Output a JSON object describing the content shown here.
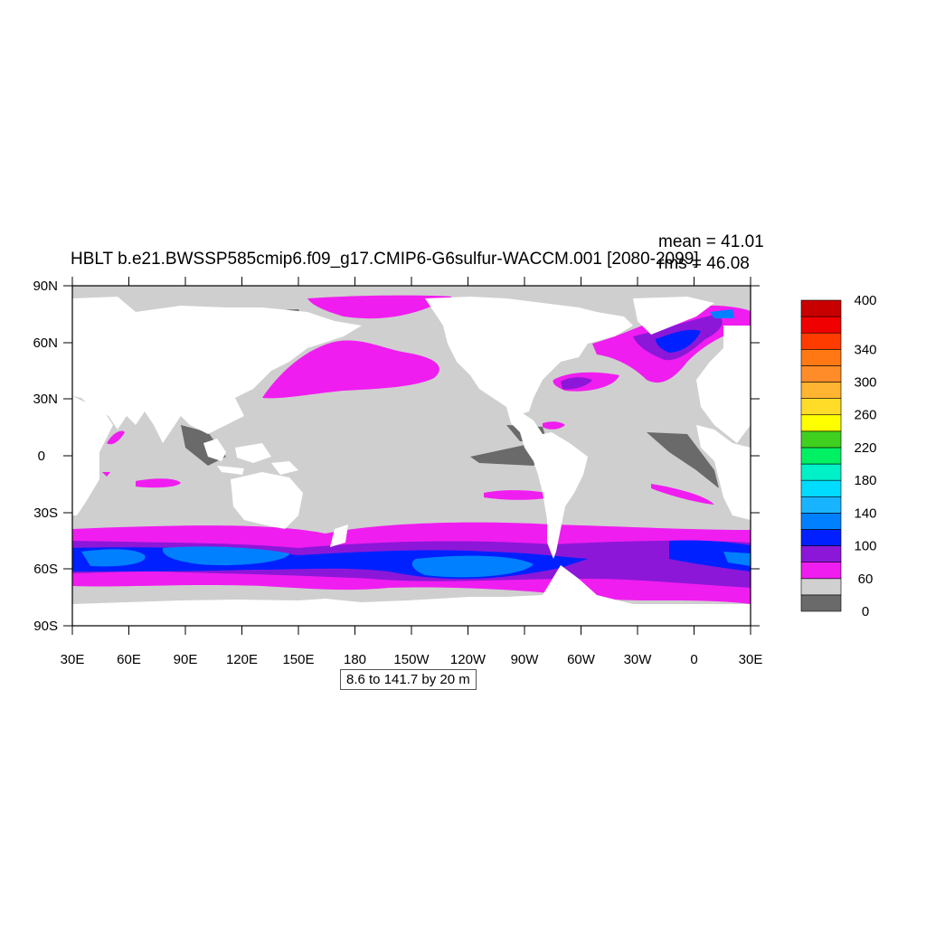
{
  "map": {
    "title": "HBLT b.e21.BWSSP585cmip6.f09_g17.CMIP6-G6sulfur-WACCM.001 [2080-2099]",
    "mean_label": "mean = 41.01",
    "rms_label": "rms = 46.08",
    "range_label": "8.6 to 141.7 by 20 m",
    "lat_ticks": [
      "90N",
      "60N",
      "30N",
      "0",
      "30S",
      "60S",
      "90S"
    ],
    "lon_ticks": [
      "30E",
      "60E",
      "90E",
      "120E",
      "150E",
      "180",
      "150W",
      "120W",
      "90W",
      "60W",
      "30W",
      "0",
      "30E"
    ],
    "land_color": "#ffffff",
    "ocean_low_color": "#cfcfcf"
  },
  "colorbar": {
    "colors": [
      "#6a6a6a",
      "#d0d0d0",
      "#f01df0",
      "#8c17d8",
      "#0020ff",
      "#0080ff",
      "#19b4ff",
      "#00dcff",
      "#00f0c8",
      "#00f064",
      "#40d020",
      "#ffff00",
      "#ffdc28",
      "#ffb432",
      "#ff8c28",
      "#ff7814",
      "#ff3c00",
      "#f00000",
      "#c80000"
    ],
    "labels": [
      {
        "text": "400",
        "index": 19
      },
      {
        "text": "340",
        "index": 16
      },
      {
        "text": "300",
        "index": 14
      },
      {
        "text": "260",
        "index": 12
      },
      {
        "text": "220",
        "index": 10
      },
      {
        "text": "180",
        "index": 8
      },
      {
        "text": "140",
        "index": 6
      },
      {
        "text": "100",
        "index": 4
      },
      {
        "text": "60",
        "index": 2
      },
      {
        "text": "0",
        "index": 0
      }
    ]
  }
}
